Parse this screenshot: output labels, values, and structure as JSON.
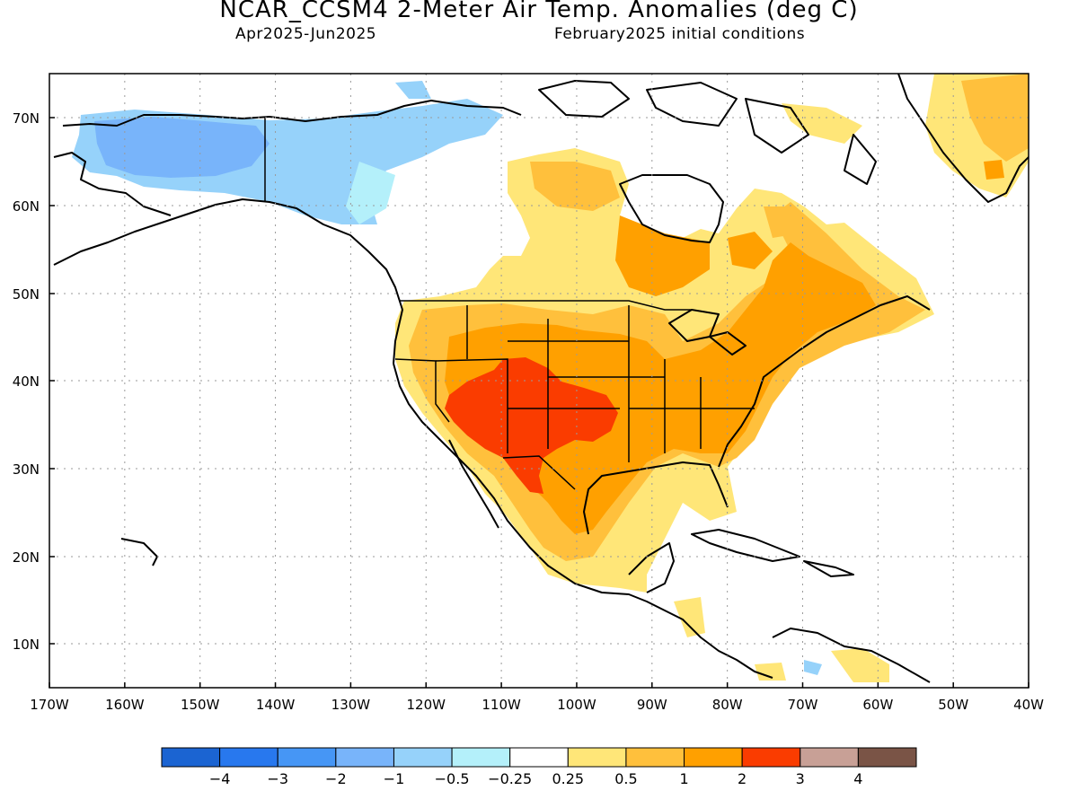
{
  "header": {
    "title": "NCAR_CCSM4 2-Meter Air Temp. Anomalies (deg C)",
    "period": "Apr2025-Jun2025",
    "init": "February2025 initial conditions"
  },
  "map": {
    "lat_labels": [
      "70N",
      "60N",
      "50N",
      "40N",
      "30N",
      "20N",
      "10N"
    ],
    "lon_labels": [
      "170W",
      "160W",
      "150W",
      "140W",
      "130W",
      "120W",
      "110W",
      "100W",
      "90W",
      "80W",
      "70W",
      "60W",
      "50W",
      "40W"
    ],
    "gridlines": "dotted"
  },
  "colorbar": {
    "colors": [
      "#1b64d2",
      "#2878ee",
      "#4696f5",
      "#78b4fa",
      "#96d2fa",
      "#b4f0fa",
      "#ffffff",
      "#ffe678",
      "#ffc03c",
      "#ffa000",
      "#fa3c00",
      "#c8a096",
      "#7a5446"
    ],
    "labels": [
      "-4",
      "-3",
      "-2",
      "-1",
      "-0.5",
      "-0.25",
      "0.25",
      "0.5",
      "1",
      "2",
      "3",
      "4"
    ]
  }
}
